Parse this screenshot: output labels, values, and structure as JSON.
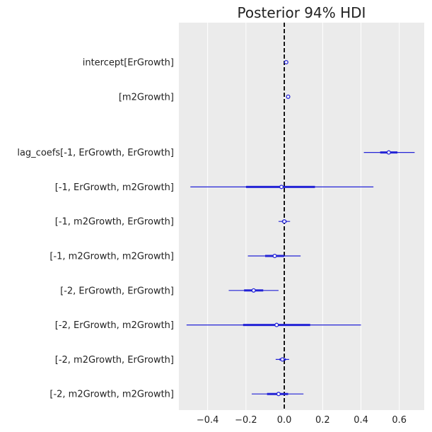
{
  "chart_data": {
    "type": "forest",
    "title": "Posterior 94% HDI",
    "xlim": [
      -0.55,
      0.73
    ],
    "xticks": [
      -0.4,
      -0.2,
      0.0,
      0.2,
      0.4,
      0.6
    ],
    "xtick_labels": [
      "−0.4",
      "−0.2",
      "0.0",
      "0.2",
      "0.4",
      "0.6"
    ],
    "reference_line": 0,
    "grid": "vertical",
    "colors": {
      "series": "#2323d6",
      "background": "#ebebeb",
      "grid": "#ffffff",
      "reference": "#000000"
    },
    "rows": [
      {
        "label": "intercept[ErGrowth]",
        "mean": 0.01,
        "hdi_low": 0.005,
        "hdi_high": 0.015,
        "iqr_low": 0.008,
        "iqr_high": 0.012,
        "gap_after": false
      },
      {
        "label": "[m2Growth]",
        "mean": 0.02,
        "hdi_low": 0.016,
        "hdi_high": 0.024,
        "iqr_low": 0.018,
        "iqr_high": 0.022,
        "gap_after": true
      },
      {
        "label": "lag_coefs[-1, ErGrowth, ErGrowth]",
        "mean": 0.545,
        "hdi_low": 0.415,
        "hdi_high": 0.68,
        "iqr_low": 0.5,
        "iqr_high": 0.59,
        "gap_after": false
      },
      {
        "label": "[-1, ErGrowth, m2Growth]",
        "mean": -0.015,
        "hdi_low": -0.49,
        "hdi_high": 0.465,
        "iqr_low": -0.2,
        "iqr_high": 0.16,
        "gap_after": false
      },
      {
        "label": "[-1, m2Growth, ErGrowth]",
        "mean": 0.0,
        "hdi_low": -0.03,
        "hdi_high": 0.03,
        "iqr_low": -0.012,
        "iqr_high": 0.012,
        "gap_after": false
      },
      {
        "label": "[-1, m2Growth, m2Growth]",
        "mean": -0.05,
        "hdi_low": -0.19,
        "hdi_high": 0.085,
        "iqr_low": -0.1,
        "iqr_high": 0.0,
        "gap_after": false
      },
      {
        "label": "[-2, ErGrowth, ErGrowth]",
        "mean": -0.16,
        "hdi_low": -0.29,
        "hdi_high": -0.03,
        "iqr_low": -0.21,
        "iqr_high": -0.11,
        "gap_after": false
      },
      {
        "label": "[-2, ErGrowth, m2Growth]",
        "mean": -0.04,
        "hdi_low": -0.51,
        "hdi_high": 0.4,
        "iqr_low": -0.215,
        "iqr_high": 0.135,
        "gap_after": false
      },
      {
        "label": "[-2, m2Growth, ErGrowth]",
        "mean": -0.01,
        "hdi_low": -0.045,
        "hdi_high": 0.025,
        "iqr_low": -0.025,
        "iqr_high": 0.008,
        "gap_after": false
      },
      {
        "label": "[-2, m2Growth, m2Growth]",
        "mean": -0.03,
        "hdi_low": -0.17,
        "hdi_high": 0.1,
        "iqr_low": -0.09,
        "iqr_high": 0.02,
        "gap_after": false
      }
    ]
  }
}
